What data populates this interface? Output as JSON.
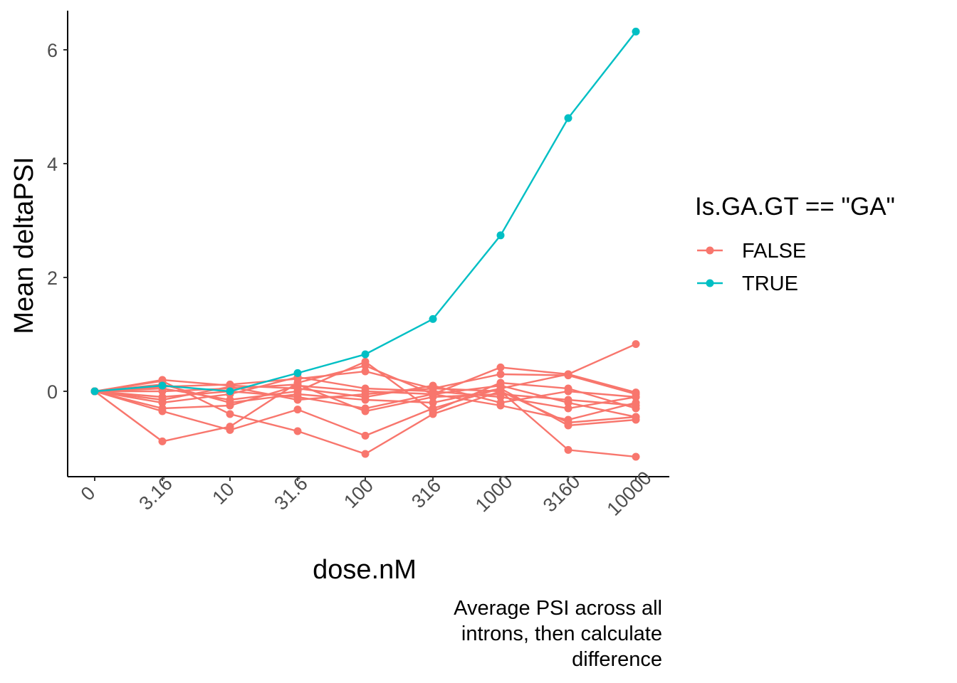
{
  "chart_data": {
    "type": "line",
    "xlabel": "dose.nM",
    "ylabel": "Mean deltaPSI",
    "x": [
      "0",
      "3.16",
      "10",
      "31.6",
      "100",
      "316",
      "1000",
      "3160",
      "10000"
    ],
    "x_scale": "categorical",
    "yticks": [
      "0",
      "2",
      "4",
      "6"
    ],
    "ylim": [
      -1.5,
      6.6
    ],
    "grid": false,
    "legend": {
      "title": "Is.GA.GT == \"GA\"",
      "placement": "right",
      "entries": [
        {
          "label": "FALSE",
          "color": "#F8766D"
        },
        {
          "label": "TRUE",
          "color": "#00BFC4"
        }
      ]
    },
    "caption": [
      "Average PSI across all",
      "introns, then calculate",
      "difference"
    ],
    "series": [
      {
        "group": "TRUE",
        "color": "#00BFC4",
        "values": [
          0,
          0.1,
          0.0,
          0.32,
          0.65,
          1.27,
          2.74,
          4.8,
          6.32
        ]
      },
      {
        "group": "FALSE",
        "color": "#F8766D",
        "values": [
          0,
          -0.88,
          -0.62,
          0.15,
          0.45,
          -0.05,
          0.42,
          0.3,
          0.83
        ]
      },
      {
        "group": "FALSE",
        "color": "#F8766D",
        "values": [
          0,
          0.18,
          -0.4,
          -0.7,
          -1.1,
          -0.4,
          0.0,
          -1.03,
          -1.15
        ]
      },
      {
        "group": "FALSE",
        "color": "#F8766D",
        "values": [
          0,
          0.08,
          0.12,
          0.22,
          0.35,
          0.05,
          0.3,
          0.28,
          -0.05
        ]
      },
      {
        "group": "FALSE",
        "color": "#F8766D",
        "values": [
          0,
          -0.35,
          -0.68,
          -0.32,
          -0.78,
          -0.3,
          0.05,
          -0.6,
          -0.5
        ]
      },
      {
        "group": "FALSE",
        "color": "#F8766D",
        "values": [
          0,
          -0.3,
          -0.25,
          0.1,
          0.0,
          -0.05,
          0.1,
          -0.2,
          -0.45
        ]
      },
      {
        "group": "FALSE",
        "color": "#F8766D",
        "values": [
          0,
          0.2,
          0.1,
          0.05,
          -0.1,
          0.1,
          -0.2,
          0.0,
          -0.1
        ]
      },
      {
        "group": "FALSE",
        "color": "#F8766D",
        "values": [
          0,
          -0.1,
          0.0,
          -0.1,
          -0.3,
          -0.05,
          -0.25,
          -0.5,
          -0.2
        ]
      },
      {
        "group": "FALSE",
        "color": "#F8766D",
        "values": [
          0,
          0.05,
          -0.15,
          0.0,
          0.52,
          -0.35,
          0.15,
          0.05,
          -0.3
        ]
      },
      {
        "group": "FALSE",
        "color": "#F8766D",
        "values": [
          0,
          -0.2,
          -0.05,
          0.25,
          0.05,
          0.0,
          -0.1,
          -0.3,
          -0.1
        ]
      },
      {
        "group": "FALSE",
        "color": "#F8766D",
        "values": [
          0,
          0.12,
          -0.2,
          -0.05,
          -0.15,
          -0.2,
          0.05,
          0.3,
          -0.02
        ]
      },
      {
        "group": "FALSE",
        "color": "#F8766D",
        "values": [
          0,
          0.0,
          0.05,
          0.12,
          -0.35,
          -0.1,
          -0.05,
          -0.15,
          -0.25
        ]
      },
      {
        "group": "FALSE",
        "color": "#F8766D",
        "values": [
          0,
          -0.15,
          0.08,
          -0.15,
          -0.05,
          0.05,
          0.0,
          -0.55,
          -0.45
        ]
      }
    ]
  }
}
